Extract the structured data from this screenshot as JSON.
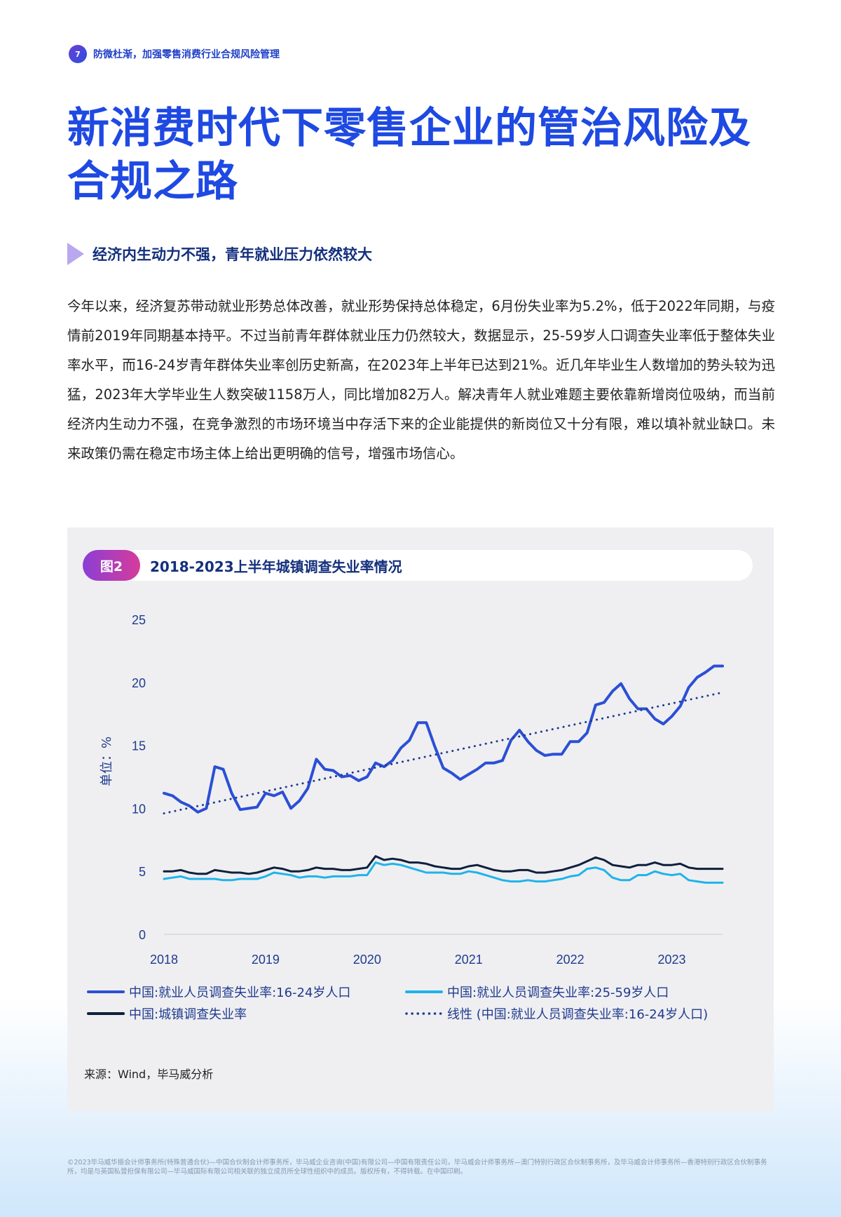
{
  "header": {
    "page_number": "7",
    "running_title": "防微杜渐，加强零售消费行业合规风险管理"
  },
  "title": "新消费时代下零售企业的管治风险及合规之路",
  "section": {
    "heading": "经济内生动力不强，青年就业压力依然较大",
    "body": "今年以来，经济复苏带动就业形势总体改善，就业形势保持总体稳定，6月份失业率为5.2%，低于2022年同期，与疫情前2019年同期基本持平。不过当前青年群体就业压力仍然较大，数据显示，25-59岁人口调查失业率低于整体失业率水平，而16-24岁青年群体失业率创历史新高，在2023年上半年已达到21%。近几年毕业生人数增加的势头较为迅猛，2023年大学毕业生人数突破1158万人，同比增加82万人。解决青年人就业难题主要依靠新增岗位吸纳，而当前经济内生动力不强，在竞争激烈的市场环境当中存活下来的企业能提供的新岗位又十分有限，难以填补就业缺口。未来政策仍需在稳定市场主体上给出更明确的信号，增强市场信心。"
  },
  "figure": {
    "label": "图2",
    "title": "2018-2023上半年城镇调查失业率情况",
    "source": "来源：Wind，毕马威分析"
  },
  "chart_data": {
    "type": "line",
    "ylabel": "单位：%",
    "ylim": [
      0,
      25
    ],
    "yticks": [
      0,
      5,
      10,
      15,
      20,
      25
    ],
    "xlim": [
      2018.0,
      2023.5
    ],
    "xticks": [
      "2018",
      "2019",
      "2020",
      "2021",
      "2022",
      "2023"
    ],
    "grid": false,
    "legend_position": "bottom",
    "x_start_month": "2018-01",
    "x_month_step": 1,
    "series": [
      {
        "name": "中国:就业人员调查失业率:16-24岁人口",
        "color": "#2b4fd6",
        "style": "solid",
        "values": [
          11.2,
          11.0,
          10.5,
          10.2,
          9.7,
          10.0,
          13.3,
          13.1,
          11.2,
          9.9,
          10.0,
          10.1,
          11.2,
          11.0,
          11.3,
          10.0,
          10.6,
          11.6,
          13.9,
          13.1,
          13.0,
          12.5,
          12.6,
          12.2,
          12.5,
          13.6,
          13.3,
          13.8,
          14.8,
          15.4,
          16.8,
          16.8,
          14.9,
          13.2,
          12.8,
          12.3,
          12.7,
          13.1,
          13.6,
          13.6,
          13.8,
          15.4,
          16.2,
          15.3,
          14.6,
          14.2,
          14.3,
          14.3,
          15.3,
          15.3,
          16.0,
          18.2,
          18.4,
          19.3,
          19.9,
          18.7,
          17.9,
          17.9,
          17.1,
          16.7,
          17.3,
          18.1,
          19.6,
          20.4,
          20.8,
          21.3,
          21.3
        ]
      },
      {
        "name": "中国:就业人员调查失业率:25-59岁人口",
        "color": "#1fb3ea",
        "style": "solid",
        "values": [
          4.4,
          4.5,
          4.6,
          4.4,
          4.4,
          4.4,
          4.4,
          4.3,
          4.3,
          4.4,
          4.4,
          4.4,
          4.6,
          4.9,
          4.8,
          4.7,
          4.5,
          4.6,
          4.6,
          4.5,
          4.6,
          4.6,
          4.6,
          4.7,
          4.7,
          5.7,
          5.5,
          5.6,
          5.5,
          5.3,
          5.1,
          4.9,
          4.9,
          4.9,
          4.8,
          4.8,
          5.0,
          4.9,
          4.7,
          4.5,
          4.3,
          4.2,
          4.2,
          4.3,
          4.2,
          4.2,
          4.3,
          4.4,
          4.6,
          4.7,
          5.2,
          5.3,
          5.1,
          4.5,
          4.3,
          4.3,
          4.7,
          4.7,
          5.0,
          4.8,
          4.7,
          4.8,
          4.3,
          4.2,
          4.1,
          4.1,
          4.1
        ]
      },
      {
        "name": "中国:城镇调查失业率",
        "color": "#0f1f3d",
        "style": "solid",
        "values": [
          5.0,
          5.0,
          5.1,
          4.9,
          4.8,
          4.8,
          5.1,
          5.0,
          4.9,
          4.9,
          4.8,
          4.9,
          5.1,
          5.3,
          5.2,
          5.0,
          5.0,
          5.1,
          5.3,
          5.2,
          5.2,
          5.1,
          5.1,
          5.2,
          5.3,
          6.2,
          5.9,
          6.0,
          5.9,
          5.7,
          5.7,
          5.6,
          5.4,
          5.3,
          5.2,
          5.2,
          5.4,
          5.5,
          5.3,
          5.1,
          5.0,
          5.0,
          5.1,
          5.1,
          4.9,
          4.9,
          5.0,
          5.1,
          5.3,
          5.5,
          5.8,
          6.1,
          5.9,
          5.5,
          5.4,
          5.3,
          5.5,
          5.5,
          5.7,
          5.5,
          5.5,
          5.6,
          5.3,
          5.2,
          5.2,
          5.2,
          5.2
        ]
      },
      {
        "name": "线性 (中国:就业人员调查失业率:16-24岁人口)",
        "color": "#1f3b8f",
        "style": "dotted",
        "trend": {
          "start": 9.6,
          "end": 19.2
        }
      }
    ]
  },
  "footer": "©2023毕马威华振会计师事务所(特殊普通合伙)—中国合伙制会计师事务所，毕马威企业咨询(中国)有限公司—中国有限责任公司，毕马威会计师事务所—澳门特别行政区合伙制事务所，及毕马威会计师事务所—香港特别行政区合伙制事务所，均是与英国私营担保有限公司—毕马威国际有限公司相关联的独立成员所全球性组织中的成员。版权所有，不得转载。在中国印刷。"
}
